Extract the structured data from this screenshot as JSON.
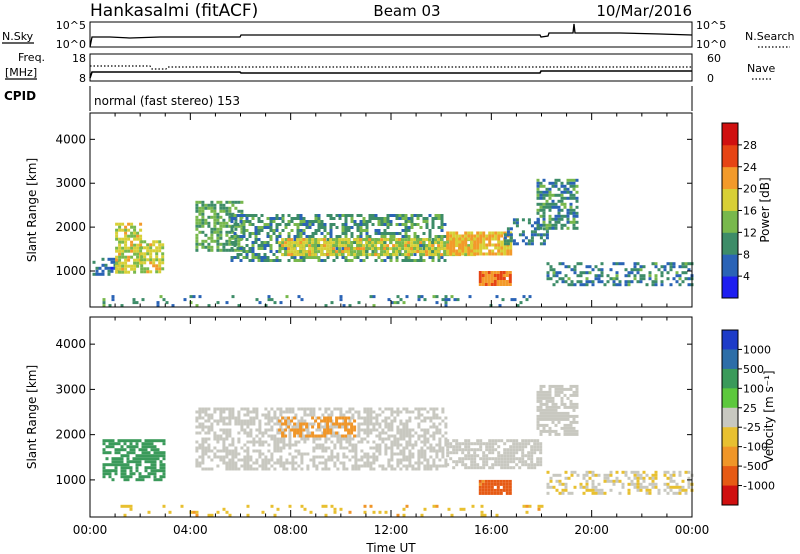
{
  "header": {
    "station": "Hankasalmi (fitACF)",
    "beam": "Beam 03",
    "date": "10/Mar/2016"
  },
  "noise_panel": {
    "left_label": "N.Sky",
    "left_ticks": [
      "10^5",
      "10^0"
    ],
    "right_ticks": [
      "10^5",
      "10^0"
    ],
    "right_label": "N.Search"
  },
  "freq_panel": {
    "left_label_1": "Freq.",
    "left_label_2": "[MHz]",
    "left_ticks": [
      "18",
      "8"
    ],
    "right_ticks": [
      "60",
      "0"
    ],
    "right_label": "Nave"
  },
  "cpid_panel": {
    "label": "CPID",
    "mode": "normal (fast stereo) 153"
  },
  "chart_data": [
    {
      "type": "heatmap",
      "panel": "power",
      "ylabel": "Slant Range [km]",
      "xlabel": "Time UT",
      "xlim": [
        0,
        24
      ],
      "ylim": [
        180,
        4600
      ],
      "y_ticks": [
        "1000",
        "2000",
        "3000",
        "4000"
      ],
      "colorbar": {
        "label": "Power [dB]",
        "ticks": [
          "4",
          "8",
          "12",
          "16",
          "20",
          "24",
          "28"
        ],
        "colors": [
          "#1e1ef0",
          "#2a63b6",
          "#3d8c68",
          "#78b84c",
          "#d8d036",
          "#f39a2a",
          "#e64414",
          "#d01010"
        ]
      },
      "echo_regions": [
        {
          "t0": 0.1,
          "t1": 1.1,
          "r0": 900,
          "r1": 1300,
          "v": 7,
          "density": 0.5
        },
        {
          "t0": 1.0,
          "t1": 2.0,
          "r0": 950,
          "r1": 2100,
          "v": 17,
          "density": 0.75
        },
        {
          "t0": 2.0,
          "t1": 2.9,
          "r0": 1000,
          "r1": 1700,
          "v": 17,
          "density": 0.7
        },
        {
          "t0": 4.2,
          "t1": 6.0,
          "r0": 1500,
          "r1": 2600,
          "v": 12,
          "density": 0.65
        },
        {
          "t0": 5.6,
          "t1": 14.2,
          "r0": 1250,
          "r1": 2300,
          "v": 10,
          "density": 0.55
        },
        {
          "t0": 7.5,
          "t1": 15.3,
          "r0": 1350,
          "r1": 1750,
          "v": 17,
          "density": 0.85
        },
        {
          "t0": 14.2,
          "t1": 16.8,
          "r0": 1400,
          "r1": 1900,
          "v": 20,
          "density": 0.9
        },
        {
          "t0": 15.5,
          "t1": 16.8,
          "r0": 700,
          "r1": 1000,
          "v": 24,
          "density": 0.95
        },
        {
          "t0": 16.5,
          "t1": 18.2,
          "r0": 1600,
          "r1": 2200,
          "v": 8,
          "density": 0.5
        },
        {
          "t0": 17.8,
          "t1": 19.4,
          "r0": 2000,
          "r1": 3100,
          "v": 10,
          "density": 0.6
        },
        {
          "t0": 18.2,
          "t1": 24.0,
          "r0": 700,
          "r1": 1200,
          "v": 9,
          "density": 0.45
        },
        {
          "t0": 0.5,
          "t1": 18.0,
          "r0": 200,
          "r1": 450,
          "v": 9,
          "density": 0.12
        }
      ]
    },
    {
      "type": "heatmap",
      "panel": "velocity",
      "ylabel": "Slant Range [km]",
      "xlabel": "Time UT",
      "xlim": [
        0,
        24
      ],
      "ylim": [
        180,
        4600
      ],
      "x_ticks": [
        "00:00",
        "04:00",
        "08:00",
        "12:00",
        "16:00",
        "20:00",
        "00:00"
      ],
      "y_ticks": [
        "1000",
        "2000",
        "3000",
        "4000"
      ],
      "colorbar": {
        "label": "Velocity [m s⁻¹]",
        "ticks": [
          "1000",
          "500",
          "100",
          "25",
          "-25",
          "-100",
          "-500",
          "-1000"
        ],
        "colors": [
          "#1e3cc8",
          "#2d6ea8",
          "#3a9a5a",
          "#5cc83c",
          "#c8c8c0",
          "#e8c030",
          "#f09628",
          "#e65a14",
          "#d01010"
        ]
      },
      "echo_regions": [
        {
          "t0": 0.5,
          "t1": 3.0,
          "r0": 1000,
          "r1": 1900,
          "v": 200,
          "density": 0.7
        },
        {
          "t0": 4.2,
          "t1": 14.2,
          "r0": 1250,
          "r1": 2600,
          "v": 0,
          "density": 0.55
        },
        {
          "t0": 7.5,
          "t1": 10.5,
          "r0": 2000,
          "r1": 2400,
          "v": -300,
          "density": 0.5
        },
        {
          "t0": 14.2,
          "t1": 18.0,
          "r0": 1300,
          "r1": 1900,
          "v": 0,
          "density": 0.7
        },
        {
          "t0": 15.5,
          "t1": 16.8,
          "r0": 700,
          "r1": 1000,
          "v": -700,
          "density": 0.9
        },
        {
          "t0": 17.8,
          "t1": 19.4,
          "r0": 2000,
          "r1": 3100,
          "v": 0,
          "density": 0.6
        },
        {
          "t0": 18.2,
          "t1": 24.0,
          "r0": 700,
          "r1": 1200,
          "v": -20,
          "density": 0.45
        },
        {
          "t0": 0.5,
          "t1": 18.0,
          "r0": 200,
          "r1": 450,
          "v": -80,
          "density": 0.12
        }
      ]
    }
  ]
}
